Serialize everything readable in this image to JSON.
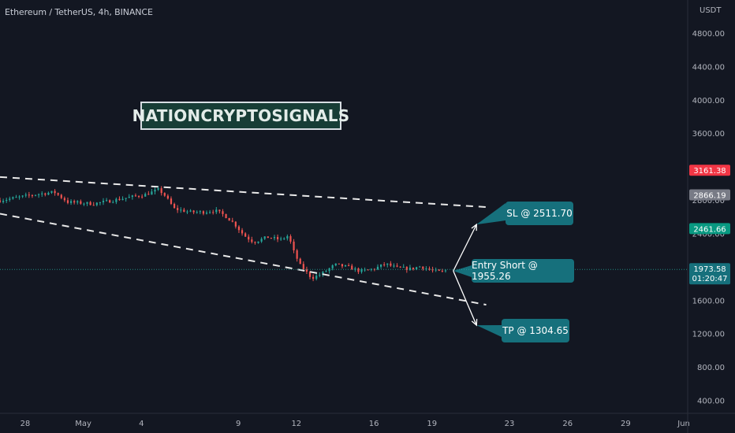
{
  "header": {
    "symbol_label": "Ethereum / TetherUS, 4h, BINANCE"
  },
  "watermark": {
    "text": "NATIONCRYPTOSIGNALS"
  },
  "callouts": {
    "sl": "SL @ 2511.70",
    "entry": "Entry Short @ 1955.26",
    "tp": "TP @ 1304.65"
  },
  "colors": {
    "background": "#131722",
    "up": "#26a69a",
    "down": "#ef5350",
    "callout": "#16707c",
    "grid": "#1e222d",
    "text": "#b2b5be"
  },
  "chart_data": {
    "type": "candlestick",
    "price_axis": {
      "unit": "USDT",
      "ticks": [
        "4800.00",
        "4400.00",
        "4000.00",
        "3600.00",
        "2800.00",
        "2400.00",
        "1600.00",
        "1200.00",
        "800.00",
        "400.00"
      ],
      "tick_values": [
        4800,
        4400,
        4000,
        3600,
        2800,
        2400,
        1600,
        1200,
        800,
        400
      ],
      "ylim": [
        250,
        5200
      ]
    },
    "time_axis": {
      "ticks": [
        "28",
        "May",
        "4",
        "9",
        "12",
        "16",
        "19",
        "23",
        "26",
        "29",
        "Jun"
      ],
      "tick_days": [
        -3,
        0,
        3,
        8,
        11,
        15,
        18,
        22,
        25,
        28,
        31
      ],
      "xlim_days": [
        -4.3,
        31.2
      ]
    },
    "price_labels": [
      {
        "value": 3161.38,
        "text": "3161.38",
        "color": "#f23645"
      },
      {
        "value": 2866.19,
        "text": "2866.19",
        "color": "#787b86"
      },
      {
        "value": 2461.66,
        "text": "2461.66",
        "color": "#089981"
      },
      {
        "value": 1973.58,
        "text": "1973.58",
        "countdown": "01:20:47",
        "color": "#16707c"
      }
    ],
    "last_price": 1973.58,
    "price_path": [
      [
        -4.3,
        2800
      ],
      [
        -2.5,
        2870
      ],
      [
        -1.5,
        2900
      ],
      [
        -0.8,
        2780
      ],
      [
        0.5,
        2760
      ],
      [
        1.3,
        2790
      ],
      [
        2.2,
        2830
      ],
      [
        3.2,
        2870
      ],
      [
        3.9,
        2930
      ],
      [
        4.2,
        2860
      ],
      [
        4.7,
        2700
      ],
      [
        5.5,
        2660
      ],
      [
        6.2,
        2660
      ],
      [
        6.8,
        2680
      ],
      [
        7.3,
        2620
      ],
      [
        7.8,
        2520
      ],
      [
        8.3,
        2380
      ],
      [
        8.8,
        2300
      ],
      [
        9.5,
        2360
      ],
      [
        10.2,
        2330
      ],
      [
        10.6,
        2380
      ],
      [
        10.8,
        2220
      ],
      [
        11.2,
        2020
      ],
      [
        11.8,
        1870
      ],
      [
        12.3,
        1920
      ],
      [
        13.0,
        2030
      ],
      [
        13.7,
        2000
      ],
      [
        14.3,
        1950
      ],
      [
        15.0,
        1980
      ],
      [
        15.6,
        2040
      ],
      [
        16.2,
        1990
      ],
      [
        16.9,
        1980
      ],
      [
        17.4,
        2010
      ],
      [
        18.0,
        1960
      ],
      [
        18.5,
        1940
      ],
      [
        18.75,
        1965
      ]
    ],
    "trendlines": [
      {
        "name": "upper-trendline",
        "style": "dashed",
        "points": [
          [
            -4.3,
            3080
          ],
          [
            20.8,
            2720
          ]
        ]
      },
      {
        "name": "lower-trendline",
        "style": "dashed",
        "points": [
          [
            -4.3,
            2640
          ],
          [
            20.8,
            1550
          ]
        ]
      }
    ],
    "trade_plan": {
      "entry": 1955.26,
      "stop_loss": 2511.7,
      "take_profit": 1304.65
    },
    "grid": false
  }
}
